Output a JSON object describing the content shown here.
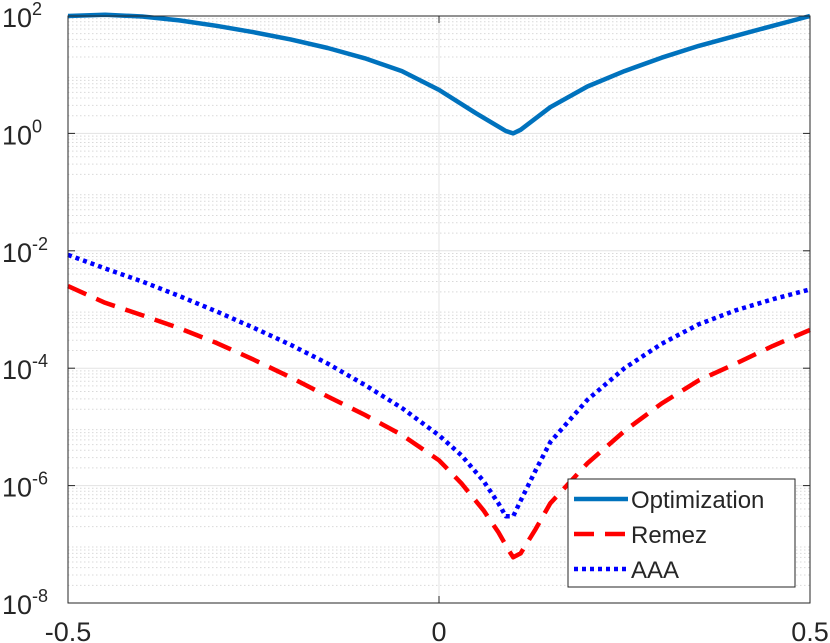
{
  "chart_data": {
    "type": "line",
    "title": "",
    "xlabel": "",
    "ylabel": "",
    "yscale": "log",
    "xlim": [
      -0.5,
      0.5
    ],
    "ylim": [
      1e-08,
      100
    ],
    "grid": true,
    "x_ticks": [
      {
        "value": -0.5,
        "label": "-0.5"
      },
      {
        "value": 0,
        "label": "0"
      },
      {
        "value": 0.5,
        "label": "0.5"
      }
    ],
    "y_ticks": [
      {
        "exp": 2,
        "base": "10",
        "sup": "2"
      },
      {
        "exp": 0,
        "base": "10",
        "sup": "0"
      },
      {
        "exp": -2,
        "base": "10",
        "sup": "-2"
      },
      {
        "exp": -4,
        "base": "10",
        "sup": "-4"
      },
      {
        "exp": -6,
        "base": "10",
        "sup": "-6"
      },
      {
        "exp": -8,
        "base": "10",
        "sup": "-8"
      }
    ],
    "legend_position": "bottom-right",
    "series": [
      {
        "name": "Optimization",
        "color": "#0072BD",
        "style": "solid",
        "x": [
          -0.5,
          -0.45,
          -0.4,
          -0.35,
          -0.3,
          -0.25,
          -0.2,
          -0.15,
          -0.1,
          -0.05,
          0,
          0.05,
          0.09,
          0.1,
          0.11,
          0.15,
          0.2,
          0.25,
          0.3,
          0.35,
          0.4,
          0.45,
          0.5
        ],
        "y": [
          100,
          105,
          98,
          84,
          68,
          53,
          40,
          28.5,
          19,
          11.5,
          5.5,
          2.2,
          1.1,
          1.0,
          1.15,
          2.8,
          6.3,
          11.5,
          19.5,
          31,
          46,
          68,
          100
        ]
      },
      {
        "name": "Remez",
        "color": "#FF0000",
        "style": "dashed",
        "x": [
          -0.5,
          -0.45,
          -0.4,
          -0.35,
          -0.3,
          -0.25,
          -0.2,
          -0.15,
          -0.1,
          -0.05,
          0,
          0.03,
          0.06,
          0.08,
          0.095,
          0.1,
          0.11,
          0.13,
          0.15,
          0.2,
          0.25,
          0.3,
          0.35,
          0.4,
          0.45,
          0.5
        ],
        "y": [
          0.0025,
          0.0013,
          0.0008,
          0.00048,
          0.00027,
          0.00014,
          7e-05,
          3.3e-05,
          1.6e-05,
          7.3e-06,
          2.7e-06,
          1.1e-06,
          3.8e-07,
          1.6e-07,
          7.5e-08,
          6e-08,
          7e-08,
          1.8e-07,
          5e-07,
          2.4e-06,
          8.5e-06,
          2.5e-05,
          6.2e-05,
          0.00012,
          0.00024,
          0.00045
        ]
      },
      {
        "name": "AAA",
        "color": "#0000FF",
        "style": "dotted",
        "x": [
          -0.5,
          -0.45,
          -0.4,
          -0.35,
          -0.3,
          -0.25,
          -0.2,
          -0.15,
          -0.1,
          -0.05,
          0,
          0.03,
          0.06,
          0.08,
          0.09,
          0.1,
          0.11,
          0.13,
          0.15,
          0.2,
          0.25,
          0.3,
          0.35,
          0.4,
          0.45,
          0.5
        ],
        "y": [
          0.0085,
          0.005,
          0.003,
          0.0017,
          0.00093,
          0.00049,
          0.00025,
          0.00012,
          5.2e-05,
          2.1e-05,
          7.2e-06,
          3.3e-06,
          1.2e-06,
          5e-07,
          3e-07,
          3e-07,
          5.5e-07,
          1.8e-06,
          5.5e-06,
          2.9e-05,
          0.0001,
          0.00026,
          0.00056,
          0.00097,
          0.0015,
          0.0022
        ]
      }
    ]
  }
}
